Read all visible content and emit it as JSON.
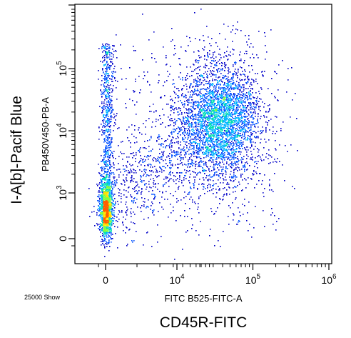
{
  "chart_data": {
    "type": "scatter",
    "subtype": "flow-cytometry-density-dot-plot",
    "event_count_label": "25000 Show",
    "x_axis": {
      "channel_label": "FITC B525-FITC-A",
      "marker_label": "CD45R-FITC",
      "scale": "biexponential",
      "ticks": [
        {
          "value": 0,
          "base": "0",
          "exp": ""
        },
        {
          "value": 10000,
          "base": "10",
          "exp": "4"
        },
        {
          "value": 100000,
          "base": "10",
          "exp": "5"
        },
        {
          "value": 1000000,
          "base": "10",
          "exp": "6"
        }
      ]
    },
    "y_axis": {
      "channel_label": "PB450V450-PB-A",
      "marker_label": "I-A[b]-Pacif Blue",
      "scale": "biexponential",
      "ticks": [
        {
          "value": 0,
          "base": "0",
          "exp": ""
        },
        {
          "value": 1000,
          "base": "10",
          "exp": "3"
        },
        {
          "value": 10000,
          "base": "10",
          "exp": "4"
        },
        {
          "value": 100000,
          "base": "10",
          "exp": "5"
        }
      ]
    },
    "populations": [
      {
        "label": "",
        "x_center": 0,
        "y_center": 700,
        "density": "high"
      },
      {
        "label": "",
        "x_center": 35000,
        "y_center": 12000,
        "density": "high"
      },
      {
        "label": "",
        "x_center": 0,
        "y_center": 40000,
        "density": "low"
      }
    ],
    "density_colors": [
      "#0000c8",
      "#0050ff",
      "#00b4ff",
      "#00e0b0",
      "#80ff40",
      "#ffe000",
      "#ff6000"
    ]
  }
}
